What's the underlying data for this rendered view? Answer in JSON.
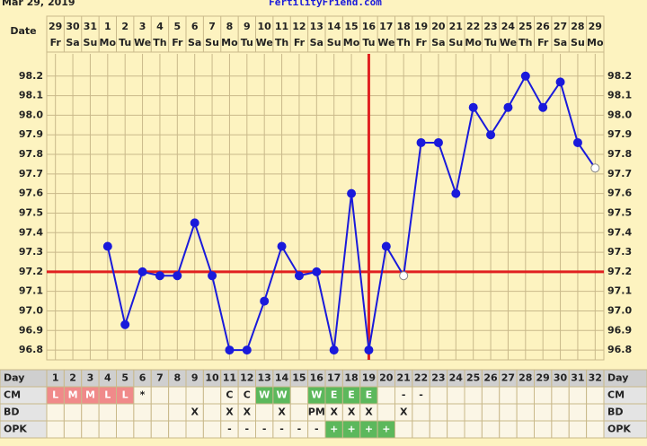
{
  "chart_data": {
    "type": "line",
    "date_stamp": "Mar 29, 2019",
    "site": "FertilityFriend.com",
    "date_label": "Date",
    "dates": [
      "29",
      "30",
      "31",
      "1",
      "2",
      "3",
      "4",
      "5",
      "6",
      "7",
      "8",
      "9",
      "10",
      "11",
      "12",
      "13",
      "14",
      "15",
      "16",
      "17",
      "18",
      "19",
      "20",
      "21",
      "22",
      "23",
      "24",
      "25",
      "26",
      "27",
      "28",
      "29"
    ],
    "weekdays": [
      "Fr",
      "Sa",
      "Su",
      "Mo",
      "Tu",
      "We",
      "Th",
      "Fr",
      "Sa",
      "Su",
      "Mo",
      "Tu",
      "We",
      "Th",
      "Fr",
      "Sa",
      "Su",
      "Mo",
      "Tu",
      "We",
      "Th",
      "Fr",
      "Sa",
      "Su",
      "Mo",
      "Tu",
      "We",
      "Th",
      "Fr",
      "Sa",
      "Su",
      "Mo"
    ],
    "day_label": "Day",
    "days": [
      1,
      2,
      3,
      4,
      5,
      6,
      7,
      8,
      9,
      10,
      11,
      12,
      13,
      14,
      15,
      16,
      17,
      18,
      19,
      20,
      21,
      22,
      23,
      24,
      25,
      26,
      27,
      28,
      29,
      30,
      31,
      32
    ],
    "series": [
      {
        "name": "Temperature",
        "color": "#1a1adb",
        "values": [
          null,
          null,
          null,
          97.33,
          96.93,
          97.2,
          97.18,
          97.18,
          97.45,
          97.18,
          96.8,
          96.8,
          97.05,
          97.33,
          97.18,
          97.2,
          96.8,
          97.6,
          96.8,
          97.33,
          97.18,
          97.86,
          97.86,
          97.6,
          98.04,
          97.9,
          98.04,
          98.2,
          98.04,
          98.17,
          97.86,
          97.73
        ]
      }
    ],
    "open_markers": [
      21,
      32
    ],
    "coverline": 97.2,
    "ovulation_day": 19,
    "marker_color": "#e02020",
    "ylim": [
      96.75,
      98.3
    ],
    "yticks": [
      96.8,
      96.9,
      {
        "value": 97.0,
        "label": "97.0"
      },
      97.1,
      97.2,
      97.3,
      97.4,
      97.5,
      97.6,
      97.7,
      97.8,
      97.9,
      {
        "value": 98.0,
        "label": "98.0"
      },
      98.1,
      98.2
    ],
    "grid": true,
    "cell_colors": {
      "L": "#f08a8a",
      "M": "#f08a8a",
      "W": "#5cb85c",
      "E": "#5cb85c",
      "+": "#5cb85c"
    },
    "rows": [
      {
        "name": "CM",
        "cells": [
          "L",
          "M",
          "M",
          "L",
          "L",
          "*",
          null,
          null,
          null,
          null,
          "C",
          "C",
          "W",
          "W",
          null,
          "W",
          "E",
          "E",
          "E",
          null,
          "-",
          "-",
          null,
          null,
          null,
          null,
          null,
          null,
          null,
          null,
          null,
          null
        ]
      },
      {
        "name": "BD",
        "cells": [
          null,
          null,
          null,
          null,
          null,
          null,
          null,
          null,
          "X",
          null,
          "X",
          "X",
          null,
          "X",
          null,
          "PM",
          "X",
          "X",
          "X",
          null,
          "X",
          null,
          null,
          null,
          null,
          null,
          null,
          null,
          null,
          null,
          null,
          null
        ]
      },
      {
        "name": "OPK",
        "cells": [
          null,
          null,
          null,
          null,
          null,
          null,
          null,
          null,
          null,
          null,
          "-",
          "-",
          "-",
          "-",
          "-",
          "-",
          "+",
          "+",
          "+",
          "+",
          null,
          null,
          null,
          null,
          null,
          null,
          null,
          null,
          null,
          null,
          null,
          null
        ]
      }
    ]
  }
}
